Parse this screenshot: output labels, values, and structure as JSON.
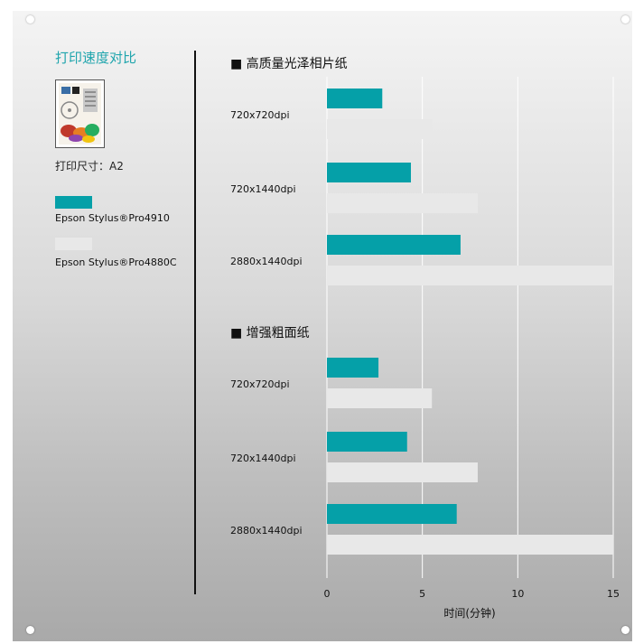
{
  "sidebar": {
    "title": "打印速度对比",
    "print_size": "打印尺寸：A2",
    "legend": [
      {
        "label": "Epson Stylus®Pro4910",
        "color": "#05a0a8"
      },
      {
        "label": "Epson Stylus®Pro4880C",
        "color": "#e8e8e8"
      }
    ]
  },
  "chart_data": {
    "type": "bar",
    "orientation": "horizontal",
    "xlabel": "时间(分钟)",
    "xlim": [
      0,
      15
    ],
    "xticks": [
      0,
      5,
      10,
      15
    ],
    "grid": true,
    "legend_position": "left",
    "groups": [
      {
        "title": "■ 高质量光泽相片纸",
        "categories": [
          "720x720dpi",
          "720x1440dpi",
          "2880x1440dpi"
        ],
        "series": [
          {
            "name": "Epson Stylus®Pro4910",
            "values": [
              2.9,
              4.4,
              7.0
            ]
          },
          {
            "name": "Epson Stylus®Pro4880C",
            "values": [
              5.5,
              7.9,
              15.0
            ]
          }
        ]
      },
      {
        "title": "■ 增强粗面纸",
        "categories": [
          "720x720dpi",
          "720x1440dpi",
          "2880x1440dpi"
        ],
        "series": [
          {
            "name": "Epson Stylus®Pro4910",
            "values": [
              2.7,
              4.2,
              6.8
            ]
          },
          {
            "name": "Epson Stylus®Pro4880C",
            "values": [
              5.5,
              7.9,
              15.0
            ]
          }
        ]
      }
    ]
  }
}
